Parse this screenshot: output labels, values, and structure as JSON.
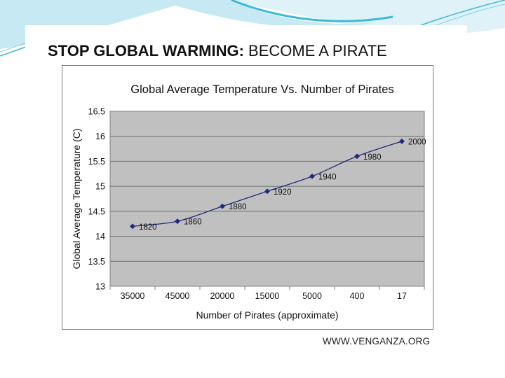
{
  "slide": {
    "title_bold": "STOP GLOBAL WARMING:",
    "title_rest": "BECOME A PIRATE",
    "source": "WWW.VENGANZA.ORG",
    "colors": {
      "accent_blue": "#3fb8d8",
      "plot_bg": "#c0c0c0",
      "line": "#1f2a7a"
    }
  },
  "chart_data": {
    "type": "line",
    "title": "Global Average Temperature Vs. Number of Pirates",
    "xlabel": "Number of Pirates (approximate)",
    "ylabel": "Global Average Temperature (C)",
    "categories": [
      "35000",
      "45000",
      "20000",
      "15000",
      "5000",
      "400",
      "17"
    ],
    "ylim": [
      13,
      16.5
    ],
    "yticks": [
      "16.5",
      "16",
      "15.5",
      "15",
      "14.5",
      "14",
      "13.5",
      "13"
    ],
    "grid": true,
    "legend": "none",
    "series": [
      {
        "name": "Temperature",
        "values": [
          14.2,
          14.3,
          14.6,
          14.9,
          15.2,
          15.6,
          15.9
        ],
        "labels": [
          "1820",
          "1860",
          "1880",
          "1920",
          "1940",
          "1980",
          "2000"
        ]
      }
    ]
  }
}
